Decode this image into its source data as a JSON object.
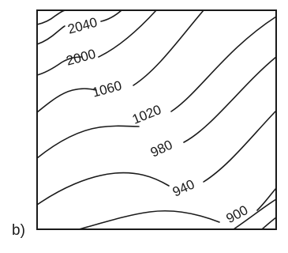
{
  "panel_label": "b)",
  "contour_labels": [
    "2040",
    "2000",
    "1060",
    "1020",
    "980",
    "940",
    "900"
  ]
}
